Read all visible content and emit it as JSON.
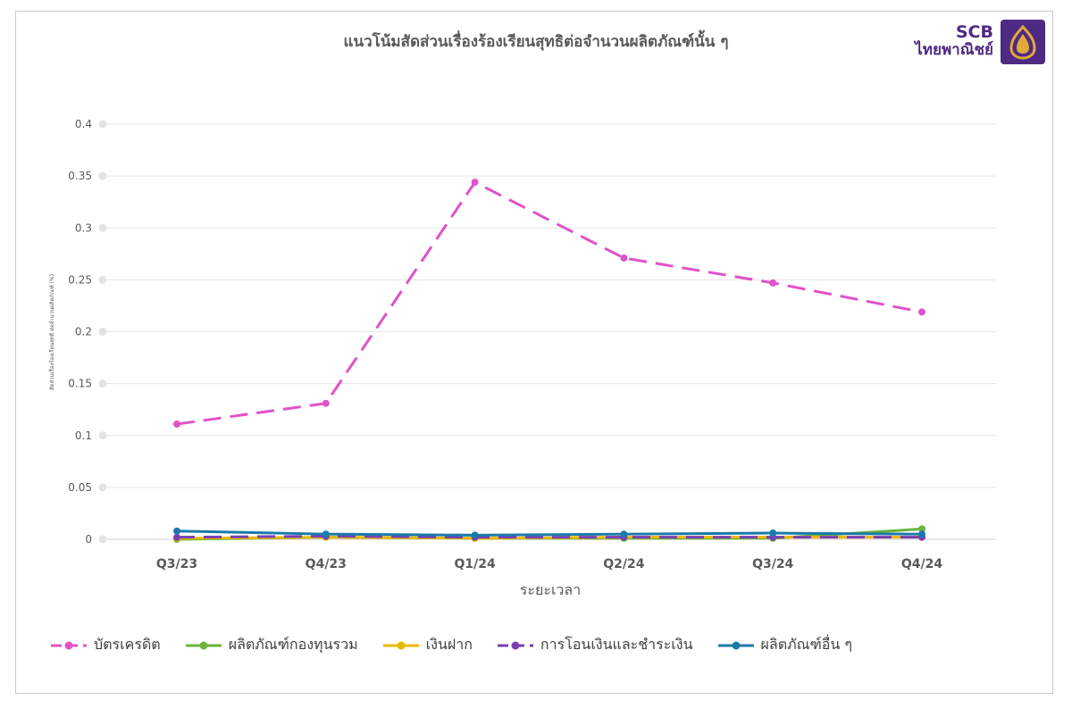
{
  "logo": {
    "brand": "SCB",
    "brand_thai": "ไทยพาณิชย์"
  },
  "chart_data": {
    "type": "line",
    "title": "แนวโน้มสัดส่วนเรื่องร้องเรียนสุทธิต่อจำนวนผลิตภัณฑ์นั้น ๆ",
    "xlabel": "ระยะเวลา",
    "ylabel": "สัดส่วนเรื่องร้องเรียนสุทธิ ต่อจำนวนผลิตภัณฑ์ (%)",
    "categories": [
      "Q3/23",
      "Q4/23",
      "Q1/24",
      "Q2/24",
      "Q3/24",
      "Q4/24"
    ],
    "y_ticks": [
      "0",
      "0.05",
      "0.1",
      "0.15",
      "0.2",
      "0.25",
      "0.3",
      "0.35",
      "0.4"
    ],
    "ylim": [
      0,
      0.4
    ],
    "grid": true,
    "legend_position": "bottom",
    "series": [
      {
        "name": "บัตรเครดิต",
        "values": [
          0.111,
          0.131,
          0.344,
          0.271,
          0.247,
          0.219
        ],
        "color": "#e052c8",
        "dashed": true
      },
      {
        "name": "ผลิตภัณฑ์กองทุนรวม",
        "values": [
          0.0,
          0.002,
          0.001,
          0.001,
          0.001,
          0.01
        ],
        "color": "#6ab33d",
        "dashed": false
      },
      {
        "name": "เงินฝาก",
        "values": [
          0.001,
          0.002,
          0.001,
          0.002,
          0.002,
          0.002
        ],
        "color": "#e8b800",
        "dashed": false
      },
      {
        "name": "การโอนเงินและชำระเงิน",
        "values": [
          0.002,
          0.003,
          0.002,
          0.002,
          0.002,
          0.002
        ],
        "color": "#7b3fb4",
        "dashed": true
      },
      {
        "name": "ผลิตภัณฑ์อื่น ๆ",
        "values": [
          0.008,
          0.005,
          0.004,
          0.005,
          0.006,
          0.005
        ],
        "color": "#1a7aa8",
        "dashed": false
      }
    ]
  }
}
